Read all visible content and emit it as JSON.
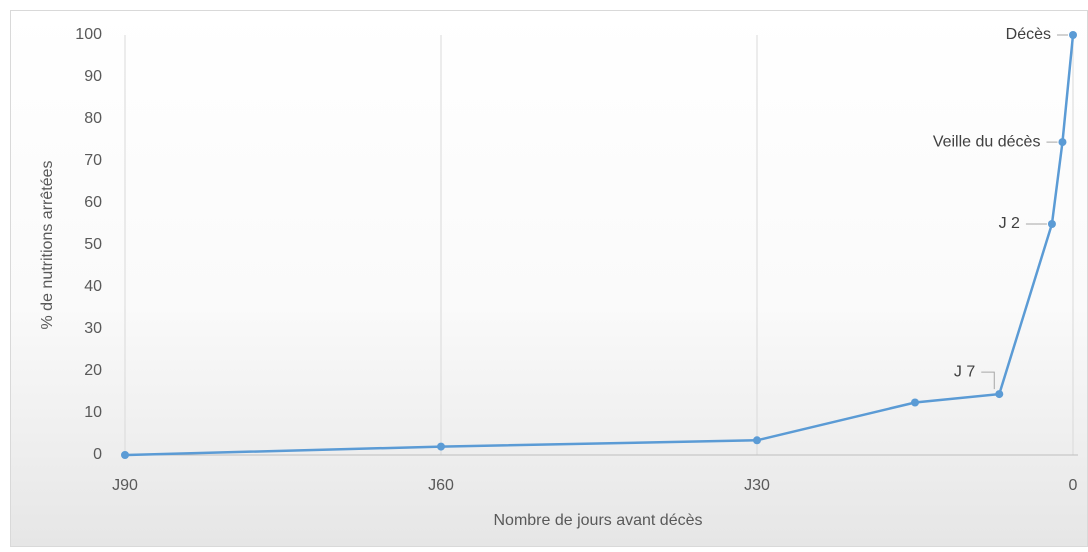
{
  "chart_data": {
    "type": "line",
    "x_label": "Nombre de jours avant décès",
    "y_label": "% de nutritions arrêtées",
    "x": [
      -90,
      -60,
      -30,
      -15,
      -7,
      -2,
      -1,
      0
    ],
    "series": [
      {
        "name": "% de nutritions arrêtées",
        "color": "#5b9bd5",
        "values": [
          0,
          2,
          3.5,
          12.5,
          14.5,
          55,
          74.5,
          100
        ],
        "point_labels": [
          null,
          null,
          null,
          null,
          "J 7",
          "J 2",
          "Veille du décès",
          "Décès"
        ]
      }
    ],
    "xlim": [
      -90,
      0
    ],
    "xticks": [
      {
        "value": -90,
        "label": "J90"
      },
      {
        "value": -60,
        "label": "J60"
      },
      {
        "value": -30,
        "label": "J30"
      },
      0
    ],
    "ylim": [
      0,
      100
    ],
    "yticks": [
      0,
      10,
      20,
      30,
      40,
      50,
      60,
      70,
      80,
      90,
      100
    ],
    "grid": "x"
  }
}
